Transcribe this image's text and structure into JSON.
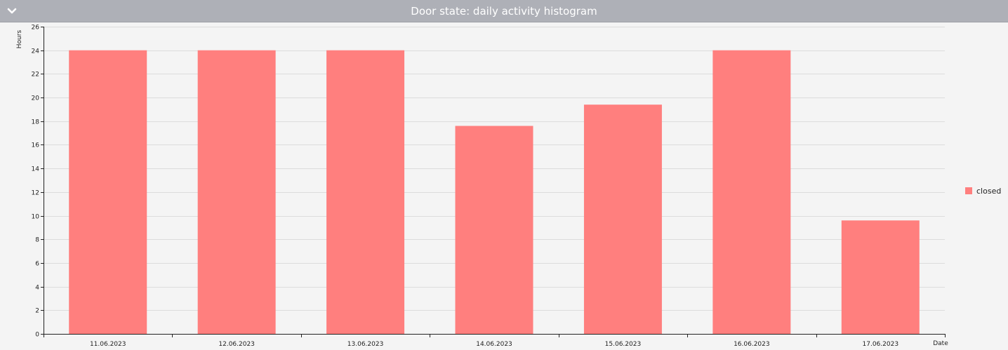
{
  "header": {
    "title": "Door state: daily activity histogram",
    "collapse_icon": "chevron-down-icon"
  },
  "chart_data": {
    "type": "bar",
    "categories": [
      "11.06.2023",
      "12.06.2023",
      "13.06.2023",
      "14.06.2023",
      "15.06.2023",
      "16.06.2023",
      "17.06.2023"
    ],
    "series": [
      {
        "name": "closed",
        "values": [
          24,
          24,
          24,
          17.6,
          19.4,
          24,
          9.6
        ],
        "color": "#ff7f7e"
      }
    ],
    "ylabel": "Hours",
    "xlabel": "Date",
    "ylim": [
      0,
      26
    ],
    "yticks": [
      0,
      2,
      4,
      6,
      8,
      10,
      12,
      14,
      16,
      18,
      20,
      22,
      24,
      26
    ],
    "grid": true,
    "legend_position": "right"
  }
}
